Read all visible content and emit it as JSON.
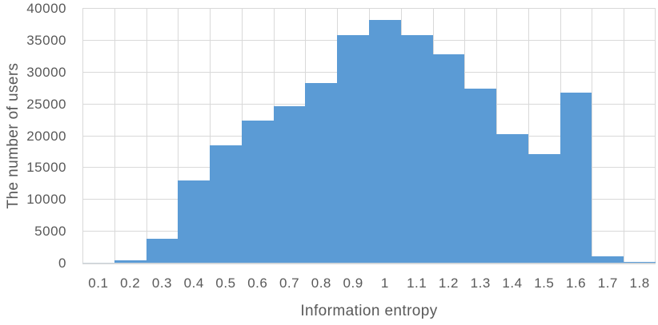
{
  "chart_data": {
    "type": "bar",
    "subtype": "histogram",
    "title": "",
    "xlabel": "Information entropy",
    "ylabel": "The number of users",
    "categories": [
      "0.1",
      "0.2",
      "0.3",
      "0.4",
      "0.5",
      "0.6",
      "0.7",
      "0.8",
      "0.9",
      "1",
      "1.1",
      "1.2",
      "1.3",
      "1.4",
      "1.5",
      "1.6",
      "1.7",
      "1.8"
    ],
    "values": [
      0,
      500,
      3900,
      13000,
      18600,
      22400,
      24700,
      28400,
      35900,
      38300,
      35900,
      32800,
      27500,
      20300,
      17200,
      26800,
      1100,
      300
    ],
    "ylim": [
      0,
      40000
    ],
    "ytick_step": 5000,
    "yticks": [
      0,
      5000,
      10000,
      15000,
      20000,
      25000,
      30000,
      35000,
      40000
    ],
    "grid": "horizontal-and-vertical",
    "legend": "none",
    "bar_gap": 0,
    "colors": {
      "bar": "#5b9bd5",
      "gridline": "#d9d9d9",
      "axis_line": "#cdd5dc",
      "text": "#595959",
      "background": "#ffffff"
    }
  }
}
